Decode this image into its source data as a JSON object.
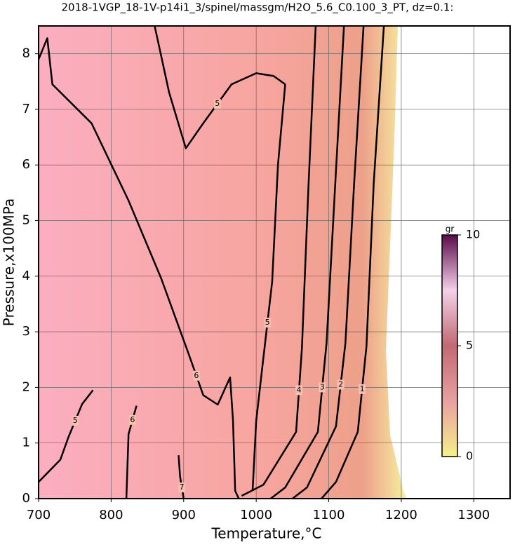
{
  "chart_data": {
    "type": "contour",
    "title": "2018-1VGP_18-1V-p14i1_3/spinel/massgm/H2O_5.6_C0.100_3_PT, dz=0.1:",
    "x_label": "Temperature,°C",
    "y_label": "Pressure,x100MPa",
    "xlim": [
      700,
      1350
    ],
    "xticks": [
      700,
      800,
      900,
      1000,
      1100,
      1200,
      1300
    ],
    "ylim": [
      0,
      8.5
    ],
    "yticks": [
      0,
      1,
      2,
      3,
      4,
      5,
      6,
      7,
      8
    ],
    "grid": true,
    "line_color": "#000000",
    "contours": [
      {
        "level": 1,
        "x": [
          1176,
          1162,
          1152,
          1140,
          1110,
          1090
        ],
        "y": [
          8.5,
          5.67,
          2.74,
          1.2,
          0.3,
          0
        ]
      },
      {
        "level": 2,
        "x": [
          1148,
          1135,
          1123,
          1110,
          1070,
          1050
        ],
        "y": [
          8.5,
          5.67,
          2.8,
          1.3,
          0.2,
          0
        ]
      },
      {
        "level": 3,
        "x": [
          1121,
          1109,
          1097,
          1085,
          1040,
          1020
        ],
        "y": [
          8.5,
          5.67,
          2.8,
          1.2,
          0.2,
          0
        ]
      },
      {
        "level": 4,
        "x": [
          1082,
          1072,
          1063,
          1055,
          1010,
          980
        ],
        "y": [
          8.5,
          5.6,
          2.7,
          1.2,
          0.25,
          0.05
        ]
      },
      {
        "level": 5,
        "x": [
          1040,
          1024,
          1000,
          966,
          927,
          903,
          880,
          860
        ],
        "y": [
          7.45,
          7.6,
          7.65,
          7.45,
          6.75,
          6.3,
          7.3,
          8.5
        ]
      },
      {
        "level": 5,
        "x": [
          1040,
          1030,
          1022,
          1009,
          1000,
          995
        ],
        "y": [
          7.45,
          6.0,
          3.9,
          2.43,
          1.4,
          0.14
        ]
      },
      {
        "level": 6,
        "x": [
          700,
          712,
          719,
          773,
          824,
          869,
          908,
          927,
          947,
          964,
          968,
          971,
          976
        ],
        "y": [
          7.9,
          8.28,
          7.45,
          6.75,
          5.36,
          3.96,
          2.56,
          1.86,
          1.69,
          2.18,
          1.41,
          0.14,
          0
        ]
      },
      {
        "level": 5,
        "x": [
          700,
          730,
          741,
          760,
          775
        ],
        "y": [
          0.3,
          0.7,
          1.1,
          1.7,
          1.95
        ]
      },
      {
        "level": 6,
        "x": [
          821,
          824,
          835
        ],
        "y": [
          0,
          1.16,
          1.67
        ]
      },
      {
        "level": 7,
        "x": [
          893,
          895,
          900
        ],
        "y": [
          0.78,
          0.4,
          0
        ]
      }
    ],
    "colorbar": {
      "label": "gr",
      "lim": [
        0,
        10
      ],
      "ticks": [
        0,
        5,
        10
      ],
      "colors": [
        "#f6f08a",
        "#e8a0a0",
        "#c06a72",
        "#f6d0e8",
        "#5a0a4a"
      ]
    }
  }
}
